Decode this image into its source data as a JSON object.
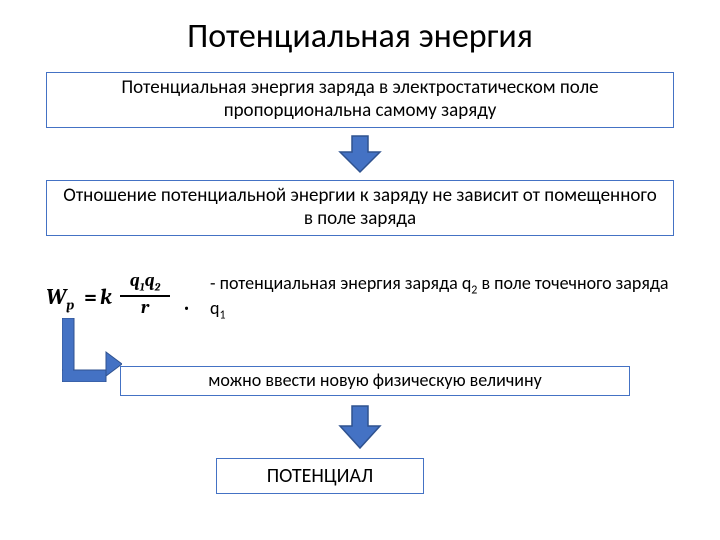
{
  "title": "Потенциальная энергия",
  "box1": "Потенциальная энергия заряда в электростатическом поле пропорциональна самому заряду",
  "box2": "Отношение потенциальной энергии к заряду не зависит от помещенного в поле заряда",
  "formula": {
    "Wp_html": "W<sub>p</sub>",
    "eq": "=",
    "k": "k",
    "num_html": "q<sub>1</sub>q<sub>2</sub>",
    "den": "r",
    "dot": "."
  },
  "formula_desc_html": "- потенциальная энергия заряда q<sub>2</sub> в поле точечного заряда q<sub>1</sub>",
  "box4": "можно ввести новую физическую величину",
  "box5": "ПОТЕНЦИАЛ",
  "style": {
    "border_color": "#4472c4",
    "arrow_fill": "#4472c4",
    "arrow_stroke": "#2f528f",
    "background": "#ffffff",
    "text_color": "#000000",
    "title_fontsize": 34,
    "box_fontsize": 19,
    "box4_fontsize": 18,
    "box5_fontsize": 20,
    "formula_fontsize": 22
  },
  "layout": {
    "page": [
      720,
      540
    ],
    "box1": [
      46,
      72,
      628,
      56
    ],
    "box2": [
      46,
      180,
      628,
      56
    ],
    "box4": [
      120,
      366,
      510,
      30
    ],
    "box5": [
      216,
      458,
      208,
      36
    ],
    "arrow1": [
      338,
      134,
      44,
      40
    ],
    "arrow2": [
      338,
      404,
      44,
      46
    ],
    "elbow": [
      62,
      318,
      60,
      64
    ]
  }
}
